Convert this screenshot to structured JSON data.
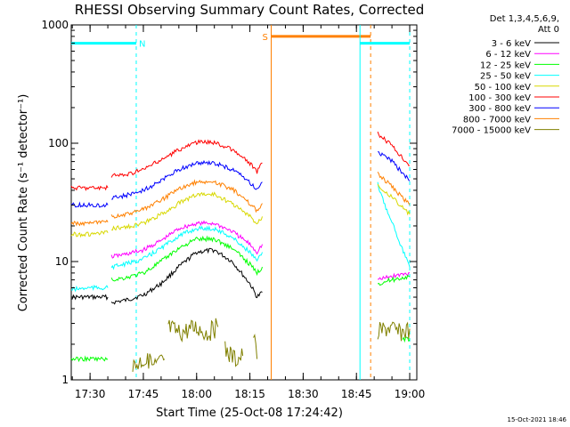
{
  "chart_data": {
    "type": "line",
    "title": "RHESSI Observing Summary Count Rates, Corrected",
    "xlabel": "Start Time (25-Oct-08 17:24:42)",
    "ylabel": "Corrected Count Rate (s⁻¹ detector⁻¹)",
    "y_scale": "log",
    "ylim": [
      1,
      1000
    ],
    "y_ticks": [
      1,
      10,
      100,
      1000
    ],
    "y_tick_labels": [
      "1",
      "10",
      "100",
      "1000"
    ],
    "xlim": [
      "17:24:42",
      "19:02:00"
    ],
    "x_ticks": [
      "17:30",
      "17:45",
      "18:00",
      "18:15",
      "18:30",
      "18:45",
      "19:00"
    ],
    "legend_header": [
      "Det 1,3,4,5,6,9,",
      "Att 0"
    ],
    "legend_position": "right",
    "series": [
      {
        "name": "3 - 6 keV",
        "color": "#000000",
        "segments": [
          {
            "x": [
              "17:24:42",
              "17:30:00",
              "17:35:00"
            ],
            "y": [
              5,
              5,
              5
            ]
          },
          {
            "x": [
              "17:36:00",
              "17:40:00",
              "17:45:00",
              "17:50:00",
              "17:55:00",
              "18:00:00",
              "18:05:00",
              "18:10:00",
              "18:15:00",
              "18:17:00",
              "18:18:30"
            ],
            "y": [
              4.5,
              4.7,
              5.2,
              6.5,
              9,
              12,
              12.5,
              10,
              6.5,
              5,
              5.5
            ]
          }
        ]
      },
      {
        "name": "6 - 12 keV",
        "color": "#ff00ff",
        "segments": [
          {
            "x": [
              "17:36:00",
              "17:40:00",
              "17:45:00",
              "17:50:00",
              "17:55:00",
              "18:00:00",
              "18:05:00",
              "18:10:00",
              "18:15:00",
              "18:17:00",
              "18:18:30"
            ],
            "y": [
              11,
              11.5,
              12.5,
              15,
              19,
              21,
              21,
              18,
              14,
              12,
              14
            ]
          },
          {
            "x": [
              "18:51:00",
              "18:55:00",
              "19:00:00"
            ],
            "y": [
              7,
              7.5,
              8
            ]
          }
        ]
      },
      {
        "name": "12 - 25 keV",
        "color": "#00ff00",
        "segments": [
          {
            "x": [
              "17:24:42",
              "17:35:00"
            ],
            "y": [
              1.5,
              1.5
            ]
          },
          {
            "x": [
              "17:36:00",
              "17:40:00",
              "17:45:00",
              "17:50:00",
              "17:55:00",
              "18:00:00",
              "18:05:00",
              "18:10:00",
              "18:15:00",
              "18:17:00",
              "18:18:30"
            ],
            "y": [
              7,
              7.3,
              8,
              10,
              13,
              15.5,
              15.5,
              13,
              9.5,
              8,
              9
            ]
          },
          {
            "x": [
              "18:51:00",
              "18:55:00",
              "19:00:00"
            ],
            "y": [
              6.5,
              7,
              7.5
            ]
          },
          {
            "x": [
              "18:58:00",
              "19:00:00"
            ],
            "y": [
              2.2,
              2.2
            ]
          }
        ]
      },
      {
        "name": "25 - 50 keV",
        "color": "#00ffff",
        "segments": [
          {
            "x": [
              "17:24:42",
              "17:30:00",
              "17:35:00"
            ],
            "y": [
              5.8,
              6,
              6
            ]
          },
          {
            "x": [
              "17:36:00",
              "17:40:00",
              "17:45:00",
              "17:50:00",
              "17:55:00",
              "18:00:00",
              "18:05:00",
              "18:10:00",
              "18:15:00",
              "18:17:00",
              "18:18:30"
            ],
            "y": [
              9,
              9.5,
              10.5,
              13,
              16.5,
              19,
              19,
              16,
              12,
              10,
              12
            ]
          },
          {
            "x": [
              "18:51:00",
              "18:53:00",
              "18:55:00",
              "18:57:00",
              "19:00:00"
            ],
            "y": [
              45,
              30,
              22,
              15,
              9
            ]
          }
        ]
      },
      {
        "name": "50 - 100 keV",
        "color": "#d8d800",
        "segments": [
          {
            "x": [
              "17:24:42",
              "17:30:00",
              "17:35:00"
            ],
            "y": [
              17,
              17,
              17.5
            ]
          },
          {
            "x": [
              "17:36:00",
              "17:40:00",
              "17:45:00",
              "17:50:00",
              "17:55:00",
              "18:00:00",
              "18:05:00",
              "18:10:00",
              "18:15:00",
              "18:17:00",
              "18:18:30"
            ],
            "y": [
              19,
              19.5,
              21,
              25,
              31,
              37,
              37,
              31,
              24,
              21,
              24
            ]
          },
          {
            "x": [
              "18:51:00",
              "18:55:00",
              "19:00:00"
            ],
            "y": [
              45,
              35,
              25
            ]
          }
        ]
      },
      {
        "name": "100 - 300 keV",
        "color": "#ff0000",
        "segments": [
          {
            "x": [
              "17:24:42",
              "17:30:00",
              "17:35:00"
            ],
            "y": [
              42,
              42,
              42
            ]
          },
          {
            "x": [
              "17:36:00",
              "17:40:00",
              "17:45:00",
              "17:50:00",
              "17:55:00",
              "18:00:00",
              "18:05:00",
              "18:10:00",
              "18:15:00",
              "18:17:00",
              "18:18:30"
            ],
            "y": [
              53,
              54,
              60,
              72,
              88,
              102,
              102,
              88,
              68,
              57,
              68
            ]
          },
          {
            "x": [
              "18:51:00",
              "18:55:00",
              "19:00:00"
            ],
            "y": [
              120,
              95,
              65
            ]
          }
        ]
      },
      {
        "name": "300 - 800 keV",
        "color": "#0000ff",
        "segments": [
          {
            "x": [
              "17:24:42",
              "17:30:00",
              "17:35:00"
            ],
            "y": [
              30,
              30,
              30
            ]
          },
          {
            "x": [
              "17:36:00",
              "17:40:00",
              "17:45:00",
              "17:50:00",
              "17:55:00",
              "18:00:00",
              "18:05:00",
              "18:10:00",
              "18:15:00",
              "18:17:00",
              "18:18:30"
            ],
            "y": [
              35,
              36,
              40,
              48,
              60,
              68,
              68,
              60,
              47,
              40,
              47
            ]
          },
          {
            "x": [
              "18:51:00",
              "18:55:00",
              "19:00:00"
            ],
            "y": [
              85,
              70,
              48
            ]
          }
        ]
      },
      {
        "name": "800 - 7000 keV",
        "color": "#ff8000",
        "segments": [
          {
            "x": [
              "17:24:42",
              "17:30:00",
              "17:35:00"
            ],
            "y": [
              21,
              21,
              21.5
            ]
          },
          {
            "x": [
              "17:36:00",
              "17:40:00",
              "17:45:00",
              "17:50:00",
              "17:55:00",
              "18:00:00",
              "18:05:00",
              "18:10:00",
              "18:15:00",
              "18:17:00",
              "18:18:30"
            ],
            "y": [
              24,
              25,
              27.5,
              33,
              41,
              47,
              47,
              41,
              31,
              27,
              31
            ]
          },
          {
            "x": [
              "18:51:00",
              "18:55:00",
              "19:00:00"
            ],
            "y": [
              55,
              43,
              30
            ]
          }
        ]
      },
      {
        "name": "7000 - 15000 keV",
        "color": "#808000",
        "segments": [
          {
            "x": [
              "17:42:00",
              "17:45:00",
              "17:48:00",
              "17:51:00"
            ],
            "y": [
              1.3,
              1.5,
              1.3,
              1.5
            ]
          },
          {
            "x": [
              "17:52:00",
              "17:55:00",
              "18:00:00",
              "18:03:00",
              "18:06:00"
            ],
            "y": [
              2.8,
              2.5,
              2.8,
              2.5,
              2.8
            ]
          },
          {
            "x": [
              "18:08:00",
              "18:11:00",
              "18:13:00"
            ],
            "y": [
              1.8,
              1.5,
              1.6
            ]
          },
          {
            "x": [
              "18:16:00",
              "18:17:00"
            ],
            "y": [
              2.5,
              1.5
            ]
          },
          {
            "x": [
              "18:51:00",
              "18:54:00",
              "18:57:00",
              "19:00:00"
            ],
            "y": [
              2.5,
              2.8,
              2.5,
              2.7
            ]
          }
        ]
      }
    ],
    "annotations": [
      {
        "label": "N",
        "color": "#00ffff",
        "from": "17:24:42",
        "to": "17:43:00",
        "bar_y": 700,
        "bar_to": "17:43:00",
        "line_style": "dashed"
      },
      {
        "label": "S",
        "color": "#ff8000",
        "from": "18:21:00",
        "to": "18:49:00",
        "bar_y": 800,
        "bar_to": "18:49:00",
        "line_style": "solid-dashed"
      },
      {
        "label": "",
        "color": "#00ffff",
        "from": "18:46:00",
        "to": "19:00:00",
        "bar_y": 700,
        "bar_to": "19:00:00",
        "line_style": "solid-dashed"
      }
    ],
    "timestamp_footer": "15-Oct-2021 18:46"
  }
}
